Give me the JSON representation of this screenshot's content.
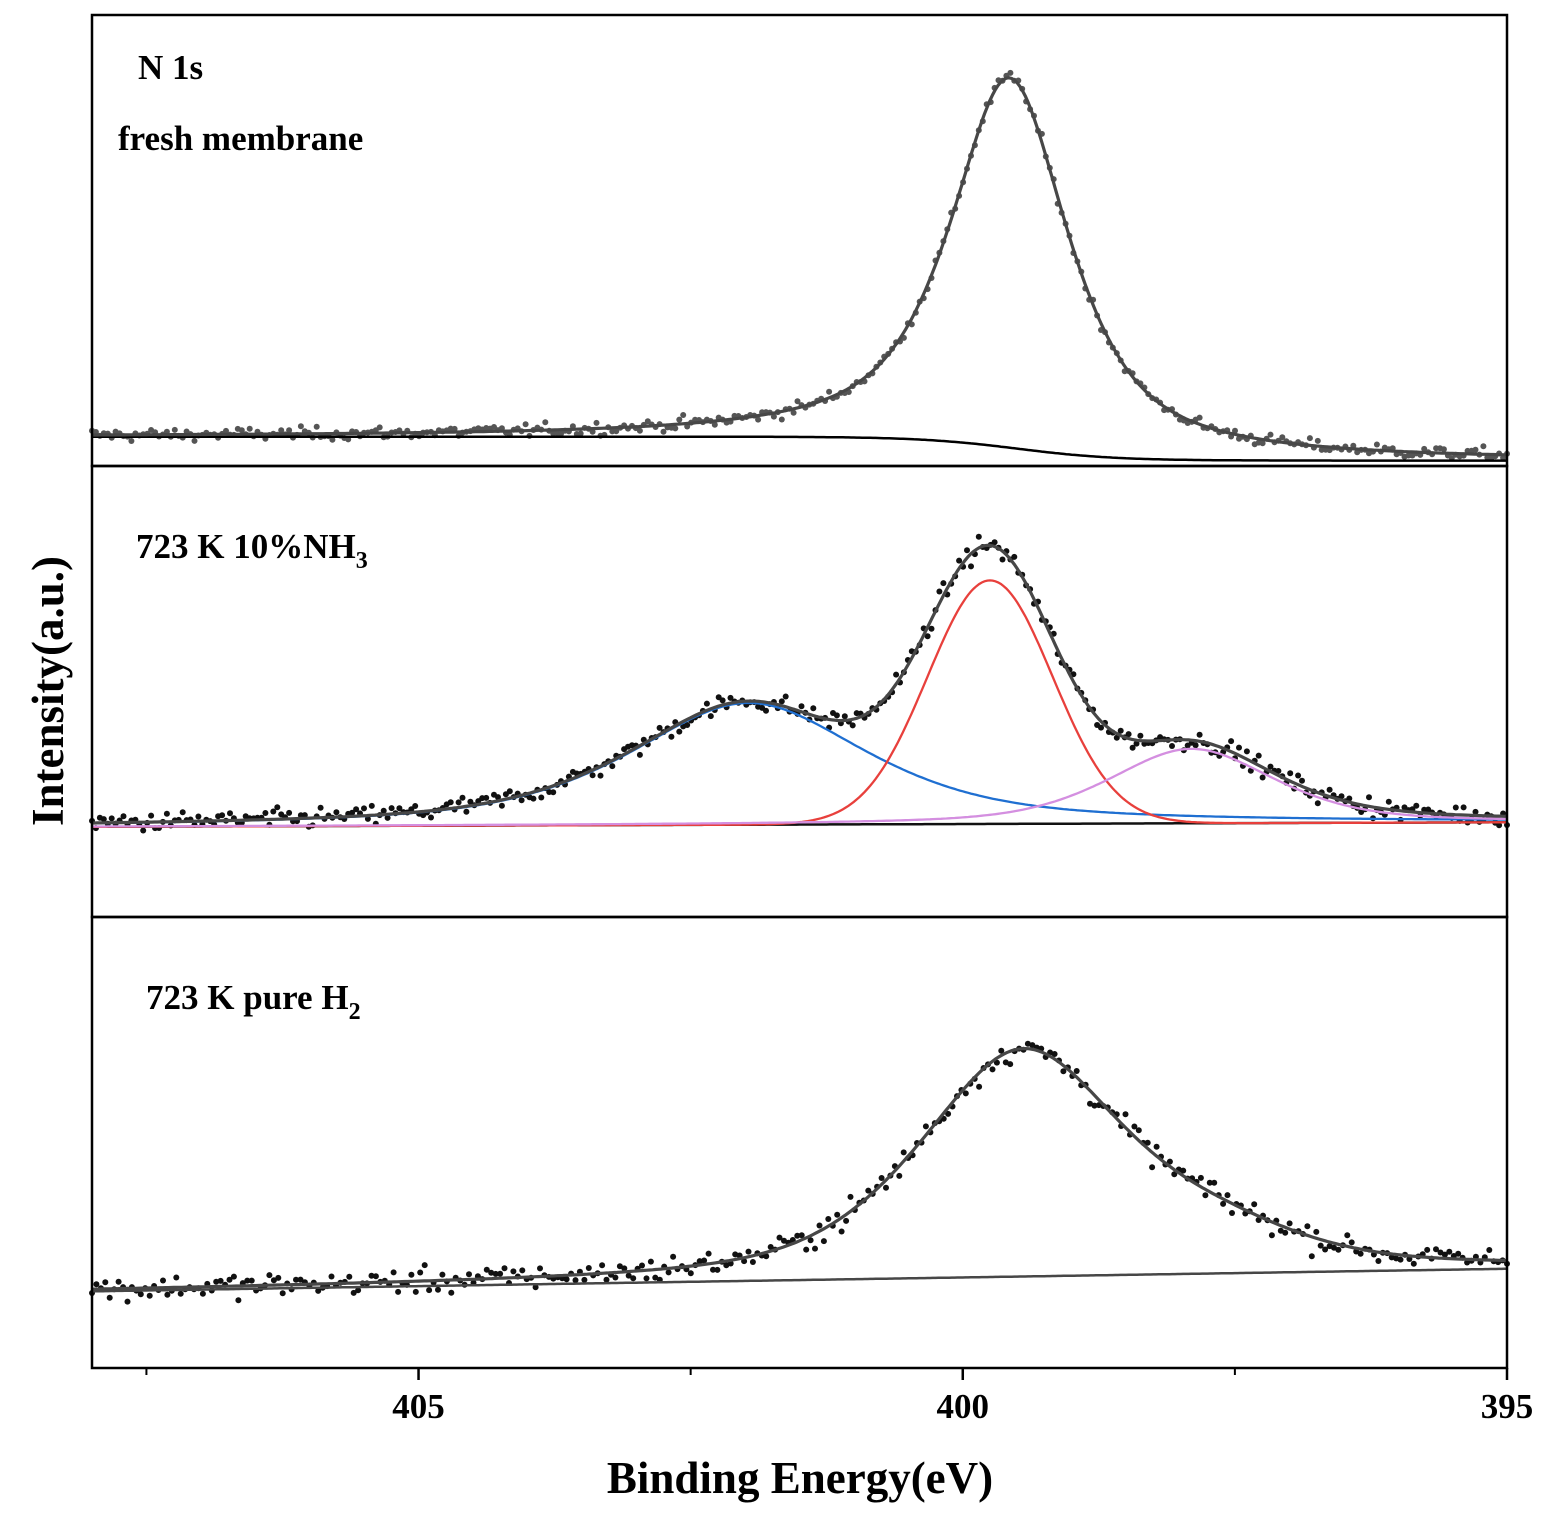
{
  "chart_data": {
    "type": "scatter",
    "title": "",
    "xlabel": "Binding Energy(eV)",
    "ylabel": "Intensity(a.u.)",
    "xlim": [
      408,
      395
    ],
    "x_reversed": true,
    "x_ticks": [
      {
        "value": 405,
        "label": "405"
      },
      {
        "value": 400,
        "label": "400"
      },
      {
        "value": 395,
        "label": "395"
      }
    ],
    "x_minor_ticks": [
      407.5,
      402.5,
      397.5
    ],
    "y_ticks_shown": false,
    "panels": [
      {
        "id": "fresh",
        "labels": [
          "N 1s",
          "fresh membrane"
        ],
        "ylim": [
          0,
          1
        ],
        "data_points": {
          "x_start": 408,
          "x_end": 395,
          "count": 360,
          "noise": 0.018,
          "color": "#555555"
        },
        "background": {
          "kind": "shirley",
          "high": 0.065,
          "low": 0.012,
          "center": 399.5,
          "width": 0.45,
          "color": "#000000"
        },
        "components": [],
        "envelope": {
          "color": "#474747",
          "peaks": [
            {
              "center": 399.57,
              "height": 0.82,
              "fwhm": 1.3,
              "eta": 0.78
            }
          ]
        }
      },
      {
        "id": "nh3",
        "label_parts": [
          {
            "text": "723 K 10%NH"
          },
          {
            "text": "3",
            "sub": true
          }
        ],
        "ylim": [
          0,
          1
        ],
        "data_points": {
          "x_start": 408,
          "x_end": 395,
          "count": 360,
          "noise": 0.028,
          "color": "#111111"
        },
        "background": {
          "kind": "linear",
          "start": 0.2,
          "end": 0.21,
          "color": "#111111"
        },
        "components": [
          {
            "name": "component-1",
            "center": 401.97,
            "height": 0.27,
            "fwhm": 2.6,
            "eta": 0.65,
            "color": "#1f6fd1"
          },
          {
            "name": "component-2",
            "center": 399.75,
            "height": 0.54,
            "fwhm": 1.35,
            "eta": 0.0,
            "color": "#e8403c"
          },
          {
            "name": "component-3",
            "center": 397.9,
            "height": 0.165,
            "fwhm": 1.8,
            "eta": 0.5,
            "color": "#d48fe0"
          }
        ],
        "envelope": {
          "color": "#474747",
          "sum_of_components": true
        }
      },
      {
        "id": "h2",
        "label_parts": [
          {
            "text": "723 K pure H"
          },
          {
            "text": "2",
            "sub": true
          }
        ],
        "ylim": [
          0,
          1
        ],
        "data_points": {
          "x_start": 408,
          "x_end": 395,
          "count": 320,
          "noise": 0.035,
          "color": "#111111"
        },
        "background": {
          "kind": "linear",
          "start": 0.17,
          "end": 0.22,
          "color": "#474747"
        },
        "components": [],
        "envelope": {
          "color": "#474747",
          "peaks": [
            {
              "center": 399.45,
              "height": 0.5,
              "fwhm": 2.25,
              "eta": 0.55
            },
            {
              "center": 397.6,
              "height": 0.055,
              "fwhm": 1.8,
              "eta": 0.3
            }
          ]
        }
      }
    ]
  }
}
